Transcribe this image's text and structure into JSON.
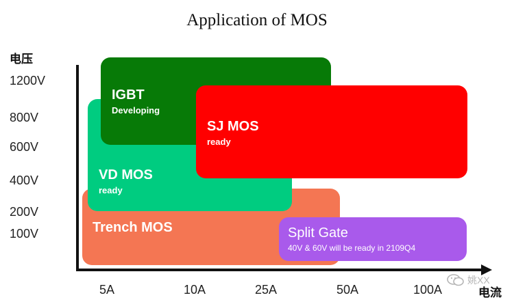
{
  "title": "Application of  MOS",
  "y_axis_name": "电压",
  "x_axis_name": "电流",
  "y_ticks": [
    "1200V",
    "800V",
    "600V",
    "400V",
    "200V",
    "100V"
  ],
  "x_ticks": [
    "5A",
    "10A",
    "25A",
    "50A",
    "100A"
  ],
  "regions": {
    "igbt": {
      "name": "IGBT",
      "sub": "Developing",
      "color": "#077a07"
    },
    "vdmos": {
      "name": "VD MOS",
      "sub": "ready",
      "color": "#00cc80"
    },
    "trench": {
      "name": "Trench MOS",
      "color": "#f47653"
    },
    "sjmos": {
      "name": "SJ MOS",
      "sub": "ready",
      "color": "#ff0000"
    },
    "split": {
      "name": "Split Gate",
      "sub": "40V & 60V will be ready in 2109Q4",
      "color": "#a95aeb"
    }
  },
  "watermark": {
    "text": "姚XX",
    "icon": "wechat-icon"
  }
}
